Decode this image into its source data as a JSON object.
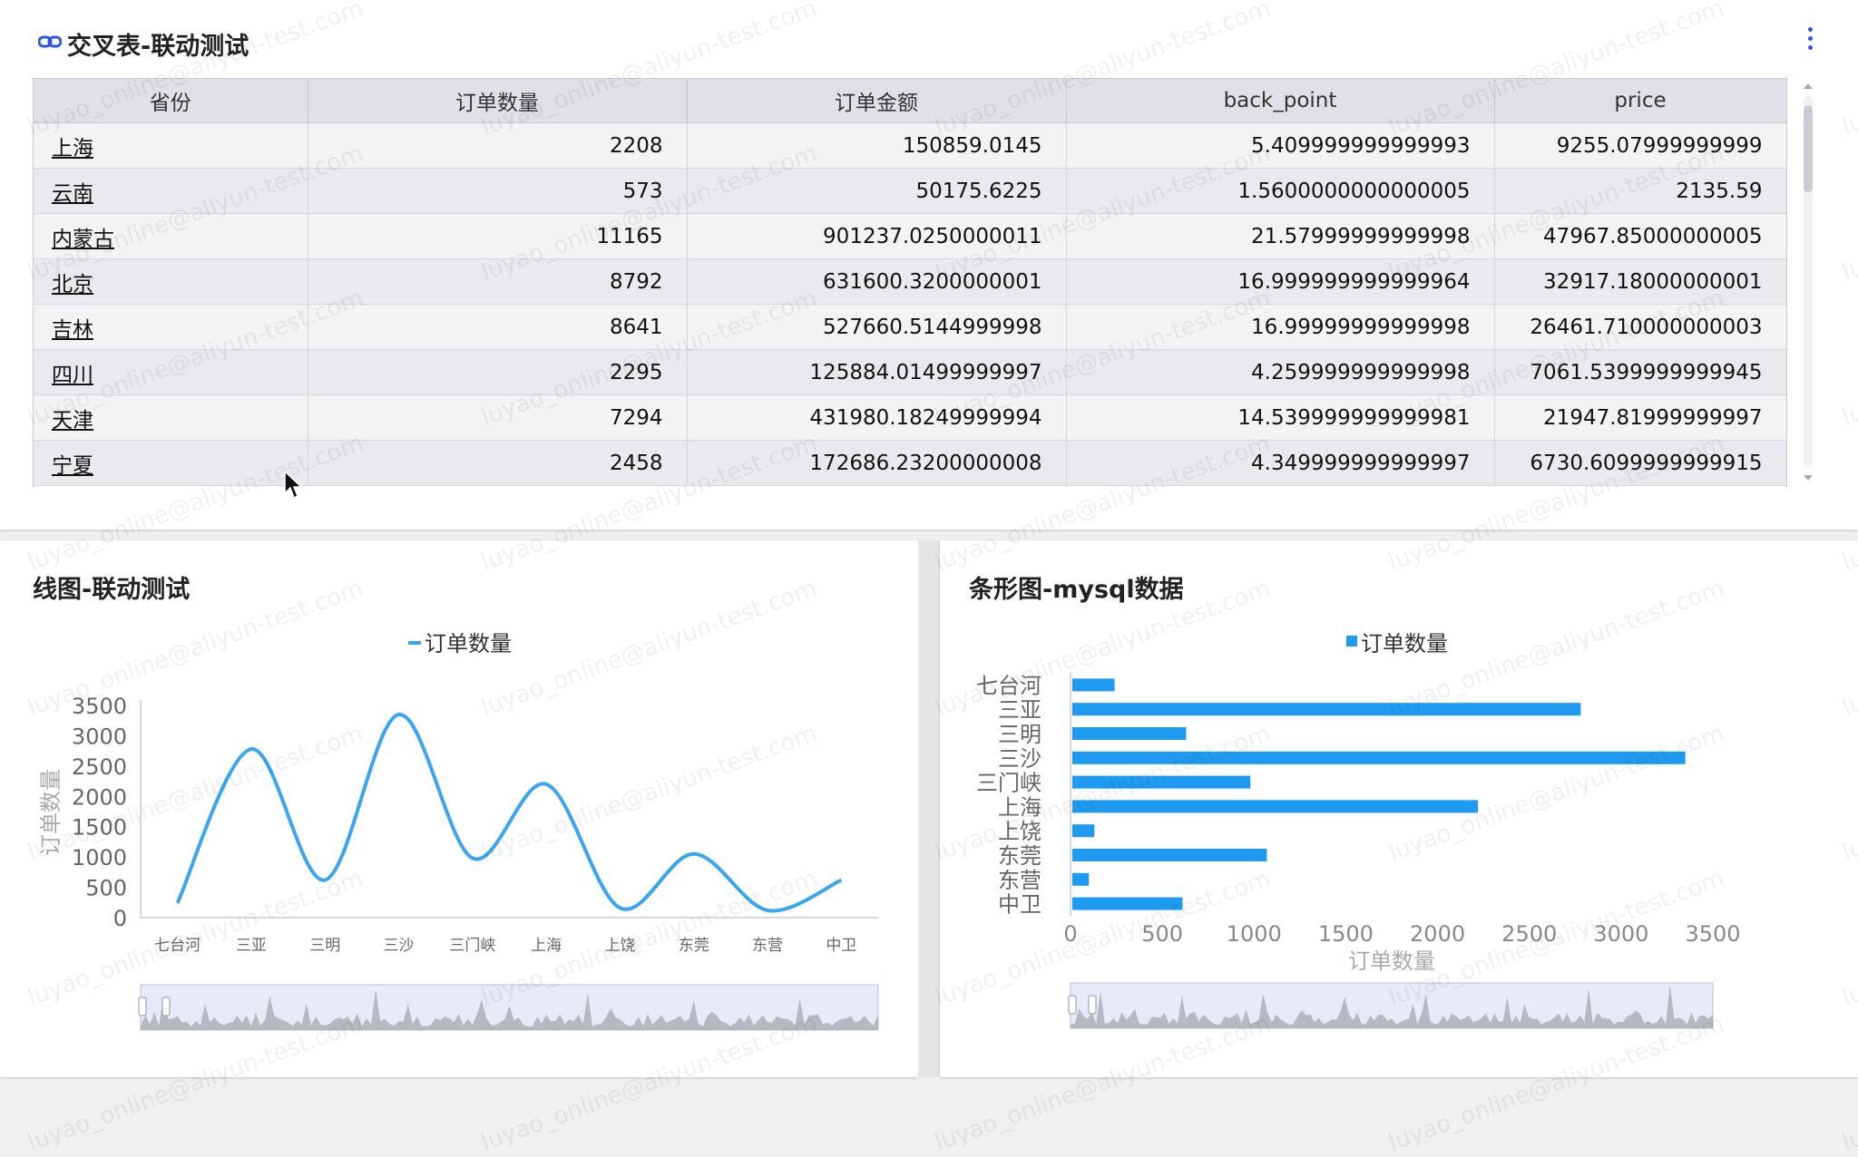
{
  "table_panel": {
    "title": "交叉表-联动测试",
    "columns": [
      "省份",
      "订单数量",
      "订单金额",
      "back_point",
      "price"
    ],
    "rows": [
      [
        "上海",
        "2208",
        "150859.0145",
        "5.409999999999993",
        "9255.07999999999"
      ],
      [
        "云南",
        "573",
        "50175.6225",
        "1.5600000000000005",
        "2135.59"
      ],
      [
        "内蒙古",
        "11165",
        "901237.0250000011",
        "21.57999999999998",
        "47967.85000000005"
      ],
      [
        "北京",
        "8792",
        "631600.3200000001",
        "16.999999999999964",
        "32917.18000000001"
      ],
      [
        "吉林",
        "8641",
        "527660.5144999998",
        "16.99999999999998",
        "26461.710000000003"
      ],
      [
        "四川",
        "2295",
        "125884.01499999997",
        "4.259999999999998",
        "7061.5399999999945"
      ],
      [
        "天津",
        "7294",
        "431980.18249999994",
        "14.539999999999981",
        "21947.81999999997"
      ],
      [
        "宁夏",
        "2458",
        "172686.23200000008",
        "4.349999999999997",
        "6730.6099999999915"
      ]
    ]
  },
  "line_panel": {
    "title": "线图-联动测试",
    "legend": "订单数量",
    "chart_data": {
      "type": "line",
      "categories": [
        "七台河",
        "三亚",
        "三明",
        "三沙",
        "三门峡",
        "上海",
        "上饶",
        "东莞",
        "东营",
        "中卫"
      ],
      "series": [
        {
          "name": "订单数量",
          "values": [
            240,
            2780,
            620,
            3350,
            980,
            2200,
            160,
            1050,
            120,
            620
          ]
        }
      ],
      "ylabel": "订单数量",
      "yticks": [
        "0",
        "500",
        "1000",
        "1500",
        "2000",
        "2500",
        "3000",
        "3500"
      ],
      "ylim": [
        0,
        3500
      ],
      "smooth": true,
      "color": "#3ba6ef"
    }
  },
  "bar_panel": {
    "title": "条形图-mysql数据",
    "legend": "订单数量",
    "chart_data": {
      "type": "bar",
      "orientation": "horizontal",
      "categories": [
        "七台河",
        "三亚",
        "三明",
        "三沙",
        "三门峡",
        "上海",
        "上饶",
        "东莞",
        "东营",
        "中卫"
      ],
      "series": [
        {
          "name": "订单数量",
          "values": [
            240,
            2780,
            630,
            3350,
            980,
            2220,
            130,
            1070,
            100,
            610
          ]
        }
      ],
      "xlabel": "订单数量",
      "xticks": [
        "0",
        "500",
        "1000",
        "1500",
        "2000",
        "2500",
        "3000",
        "3500"
      ],
      "xlim": [
        0,
        3500
      ],
      "color": "#1e9bf0"
    }
  },
  "watermark_text": "luyao_online@aliyun-test.com",
  "colors": {
    "accent": "#2f54eb",
    "line": "#3ba6ef",
    "bar": "#1e9bf0"
  }
}
